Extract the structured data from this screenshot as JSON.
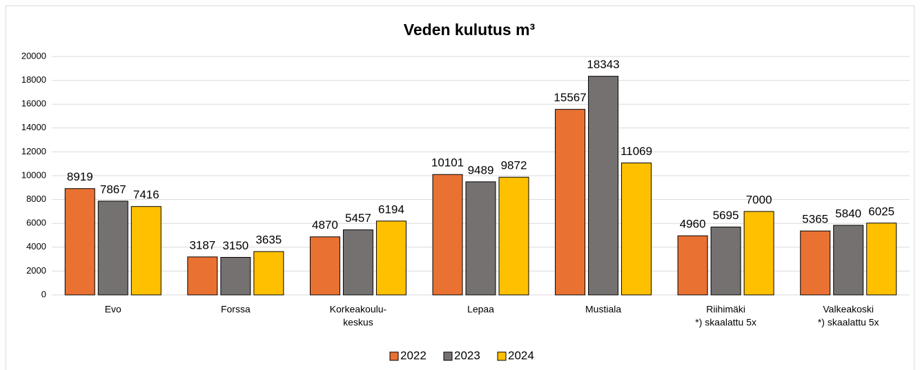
{
  "chart_data": {
    "type": "bar",
    "title": "Veden kulutus m³",
    "categories": [
      [
        "Evo"
      ],
      [
        "Forssa"
      ],
      [
        "Korkeakoulu-",
        "keskus"
      ],
      [
        "Lepaa"
      ],
      [
        "Mustiala"
      ],
      [
        "Riihimäki",
        "*) skaalattu 5x"
      ],
      [
        "Valkeakoski",
        "*) skaalattu 5x"
      ]
    ],
    "series": [
      {
        "name": "2022",
        "color": "#e97132",
        "values": [
          8919,
          3187,
          4870,
          10101,
          15567,
          4960,
          5365
        ]
      },
      {
        "name": "2023",
        "color": "#767171",
        "values": [
          7867,
          3150,
          5457,
          9489,
          18343,
          5695,
          5840
        ]
      },
      {
        "name": "2024",
        "color": "#ffc000",
        "values": [
          7416,
          3635,
          6194,
          9872,
          11069,
          7000,
          6025
        ]
      }
    ],
    "ylim": [
      0,
      20000
    ],
    "yticks": [
      0,
      2000,
      4000,
      6000,
      8000,
      10000,
      12000,
      14000,
      16000,
      18000,
      20000
    ],
    "grid": true,
    "legend": "bottom"
  }
}
